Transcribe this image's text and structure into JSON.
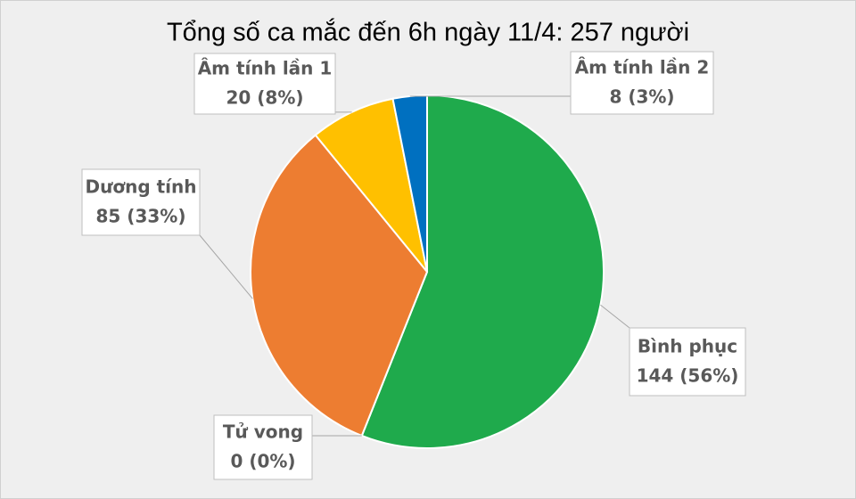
{
  "chart_data": {
    "type": "pie",
    "title": "Tổng số ca mắc đến 6h ngày 11/4: 257 người",
    "categories": [
      "Bình phục",
      "Tử vong",
      "Dương tính",
      "Âm tính lần 1",
      "Âm tính lần 2"
    ],
    "values": [
      144,
      0,
      85,
      20,
      8
    ],
    "value_labels": [
      "144 (56%)",
      "0 (0%)",
      "85 (33%)",
      "20 (8%)",
      "8 (3%)"
    ],
    "colors": [
      "#1faa4c",
      "#a5a5a5",
      "#ed7d31",
      "#ffc000",
      "#0070c0"
    ]
  }
}
